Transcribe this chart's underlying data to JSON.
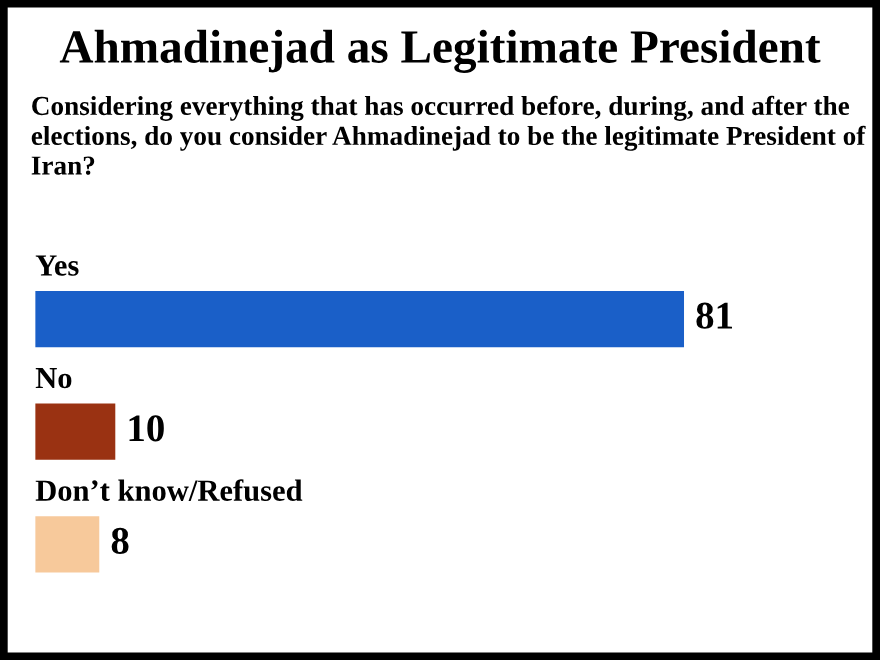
{
  "chart_data": {
    "type": "bar",
    "orientation": "horizontal",
    "title": "Ahmadinejad as Legitimate President",
    "subtitle": "Considering everything that has occurred before, during, and after the elections, do you consider Ahmadinejad to be the legitimate President of Iran?",
    "categories": [
      "Yes",
      "No",
      "Don’t know/Refused"
    ],
    "values": [
      81,
      10,
      8
    ],
    "colors": [
      "#1a5fc8",
      "#9a3212",
      "#f7c99b"
    ],
    "data_labels": true
  }
}
